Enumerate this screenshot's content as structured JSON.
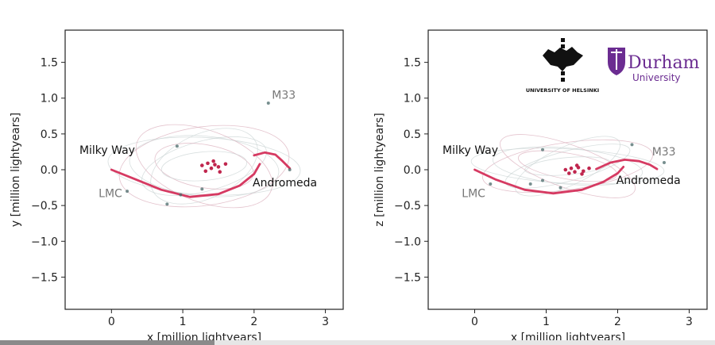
{
  "video": {
    "progress_fraction": 0.3
  },
  "logos": {
    "helsinki": "UNIVERSITY OF HELSINKI",
    "durham_name": "Durham",
    "durham_sub": "University",
    "durham_color": "#6b2c91"
  },
  "chart_data": [
    {
      "type": "line",
      "xlabel": "x [million lightyears]",
      "ylabel": "y [million lightyears]",
      "xlim": [
        -0.65,
        3.25
      ],
      "ylim": [
        -1.95,
        1.95
      ],
      "xticks": [
        0,
        1,
        2,
        3
      ],
      "yticks": [
        -1.5,
        -1.0,
        -0.5,
        0.0,
        0.5,
        1.0,
        1.5
      ],
      "grid": false,
      "annotations": [
        {
          "text": "Milky Way",
          "x": -0.45,
          "y": 0.22,
          "color": "#111111"
        },
        {
          "text": "LMC",
          "x": -0.18,
          "y": -0.38,
          "color": "#777777"
        },
        {
          "text": "M33",
          "x": 2.25,
          "y": 0.99,
          "color": "#777777"
        },
        {
          "text": "Andromeda",
          "x": 1.98,
          "y": -0.23,
          "color": "#111111"
        }
      ],
      "series": [
        {
          "color": "#d63a62",
          "x": [
            0.0,
            0.3,
            0.7,
            1.1,
            1.5,
            1.8,
            2.0,
            2.08
          ],
          "y": [
            0.0,
            -0.12,
            -0.28,
            -0.38,
            -0.34,
            -0.22,
            -0.06,
            0.08
          ]
        },
        {
          "color": "#d63a62",
          "x": [
            2.0,
            2.15,
            2.3,
            2.4,
            2.5
          ],
          "y": [
            0.2,
            0.24,
            0.21,
            0.12,
            0.02
          ]
        }
      ],
      "markers": [
        {
          "x": 1.27,
          "y": 0.06
        },
        {
          "x": 1.35,
          "y": 0.09
        },
        {
          "x": 1.4,
          "y": 0.02
        },
        {
          "x": 1.45,
          "y": 0.07
        },
        {
          "x": 1.52,
          "y": -0.03
        },
        {
          "x": 1.32,
          "y": -0.02
        },
        {
          "x": 1.6,
          "y": 0.08
        },
        {
          "x": 1.43,
          "y": 0.12
        },
        {
          "x": 1.5,
          "y": 0.04
        }
      ],
      "satellites": [
        {
          "x": 0.97,
          "y": -0.35
        },
        {
          "x": 0.78,
          "y": -0.48
        },
        {
          "x": 1.27,
          "y": -0.27
        },
        {
          "x": 2.2,
          "y": 0.93
        },
        {
          "x": 0.92,
          "y": 0.33
        },
        {
          "x": 2.5,
          "y": 0.0
        },
        {
          "x": 0.22,
          "y": -0.3
        }
      ]
    },
    {
      "type": "line",
      "xlabel": "x [million lightyears]",
      "ylabel": "z [million lightyears]",
      "xlim": [
        -0.65,
        3.25
      ],
      "ylim": [
        -1.95,
        1.95
      ],
      "xticks": [
        0,
        1,
        2,
        3
      ],
      "yticks": [
        -1.5,
        -1.0,
        -0.5,
        0.0,
        0.5,
        1.0,
        1.5
      ],
      "grid": false,
      "annotations": [
        {
          "text": "Milky Way",
          "x": -0.45,
          "y": 0.22,
          "color": "#111111"
        },
        {
          "text": "LMC",
          "x": -0.18,
          "y": -0.38,
          "color": "#777777"
        },
        {
          "text": "M33",
          "x": 2.48,
          "y": 0.2,
          "color": "#777777"
        },
        {
          "text": "Andromeda",
          "x": 1.98,
          "y": -0.2,
          "color": "#111111"
        }
      ],
      "series": [
        {
          "color": "#d63a62",
          "x": [
            0.0,
            0.3,
            0.7,
            1.1,
            1.5,
            1.8,
            2.0,
            2.08
          ],
          "y": [
            0.0,
            -0.14,
            -0.28,
            -0.33,
            -0.28,
            -0.17,
            -0.05,
            0.04
          ]
        },
        {
          "color": "#d63a62",
          "x": [
            1.7,
            1.9,
            2.1,
            2.3,
            2.45,
            2.55
          ],
          "y": [
            0.01,
            0.1,
            0.14,
            0.12,
            0.07,
            0.01
          ]
        }
      ],
      "markers": [
        {
          "x": 1.27,
          "y": 0.0
        },
        {
          "x": 1.35,
          "y": 0.02
        },
        {
          "x": 1.4,
          "y": -0.03
        },
        {
          "x": 1.45,
          "y": 0.03
        },
        {
          "x": 1.52,
          "y": -0.02
        },
        {
          "x": 1.32,
          "y": -0.05
        },
        {
          "x": 1.6,
          "y": 0.02
        },
        {
          "x": 1.43,
          "y": 0.06
        },
        {
          "x": 1.5,
          "y": -0.06
        }
      ],
      "satellites": [
        {
          "x": 0.95,
          "y": -0.15
        },
        {
          "x": 0.78,
          "y": -0.2
        },
        {
          "x": 1.2,
          "y": -0.25
        },
        {
          "x": 2.2,
          "y": 0.35
        },
        {
          "x": 0.95,
          "y": 0.28
        },
        {
          "x": 2.65,
          "y": 0.1
        },
        {
          "x": 0.22,
          "y": -0.2
        }
      ]
    }
  ]
}
